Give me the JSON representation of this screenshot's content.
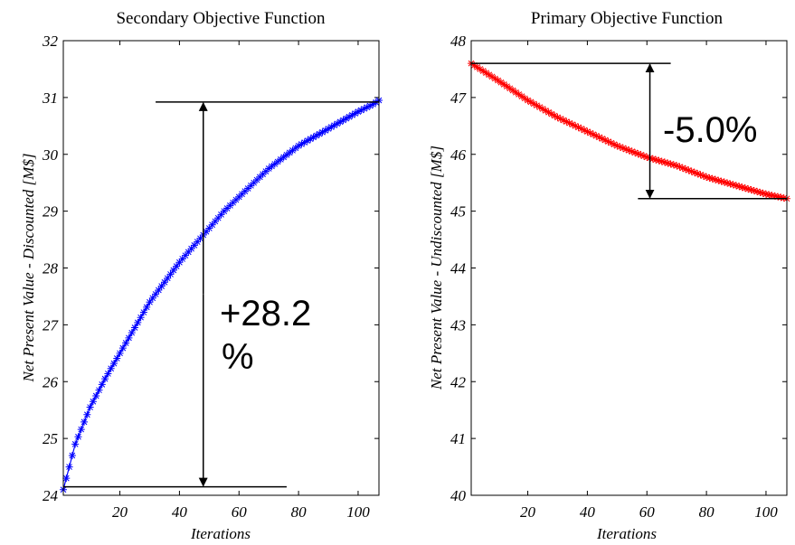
{
  "chart_data": [
    {
      "type": "line",
      "title": "Secondary Objective Function",
      "xlabel": "Iterations",
      "ylabel": "Net Present Value - Discounted [M$]",
      "xlim": [
        1,
        107
      ],
      "ylim": [
        24,
        32
      ],
      "xticks": [
        "20",
        "40",
        "60",
        "80",
        "100"
      ],
      "yticks": [
        "24",
        "25",
        "26",
        "27",
        "28",
        "29",
        "30",
        "31",
        "32"
      ],
      "grid": false,
      "series": [
        {
          "color": "#0000ff",
          "marker": "asterisk",
          "x": [
            1,
            5,
            10,
            15,
            20,
            25,
            30,
            35,
            40,
            45,
            50,
            55,
            60,
            65,
            70,
            75,
            80,
            85,
            90,
            95,
            100,
            105,
            107
          ],
          "values": [
            24.1,
            24.9,
            25.55,
            26.05,
            26.5,
            26.95,
            27.4,
            27.75,
            28.1,
            28.4,
            28.7,
            29.0,
            29.25,
            29.5,
            29.75,
            29.95,
            30.15,
            30.3,
            30.45,
            30.6,
            30.75,
            30.88,
            30.95
          ]
        }
      ],
      "annotation": {
        "text_line1": "+28.2",
        "text_line2": "%",
        "upper_value": 30.92,
        "lower_value": 24.15,
        "arrow_x": 48,
        "upper_line_x": [
          32,
          107
        ],
        "lower_line_x": [
          1,
          76
        ]
      }
    },
    {
      "type": "line",
      "title": "Primary Objective Function",
      "xlabel": "Iterations",
      "ylabel": "Net Present Value - Undiscounted [M$]",
      "xlim": [
        1,
        107
      ],
      "ylim": [
        40,
        48
      ],
      "xticks": [
        "20",
        "40",
        "60",
        "80",
        "100"
      ],
      "yticks": [
        "40",
        "41",
        "42",
        "43",
        "44",
        "45",
        "46",
        "47",
        "48"
      ],
      "grid": false,
      "series": [
        {
          "color": "#ff0000",
          "marker": "asterisk",
          "x": [
            1,
            10,
            20,
            30,
            40,
            50,
            60,
            70,
            80,
            90,
            100,
            107
          ],
          "values": [
            47.6,
            47.3,
            46.95,
            46.65,
            46.4,
            46.15,
            45.95,
            45.8,
            45.6,
            45.45,
            45.3,
            45.22
          ]
        }
      ],
      "annotation": {
        "text": "-5.0%",
        "upper_value": 47.6,
        "lower_value": 45.22,
        "arrow_x": 61,
        "upper_line_x": [
          1,
          68
        ],
        "lower_line_x": [
          57,
          107
        ]
      }
    }
  ]
}
